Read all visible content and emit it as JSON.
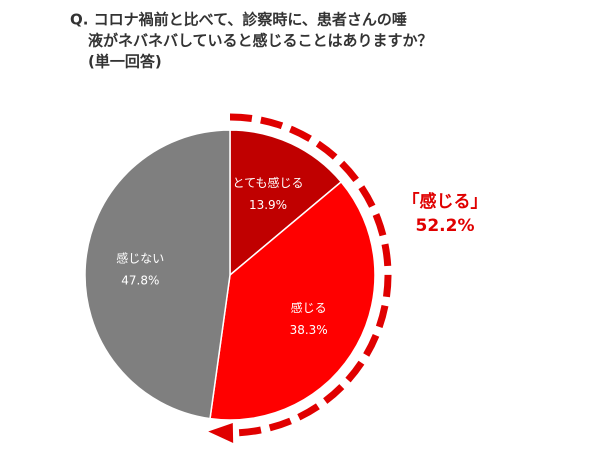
{
  "chart_data": {
    "type": "pie",
    "title_lines": [
      "Q. コロナ禍前と比べて、診察時に、患者さんの唾",
      "液がネバネバしていると感じることはありますか？",
      "(単一回答)"
    ],
    "categories": [
      "とても感じる",
      "感じる",
      "感じない"
    ],
    "values": [
      13.9,
      38.3,
      47.8
    ],
    "value_labels": [
      "13.9%",
      "38.3%",
      "47.8%"
    ],
    "colors": [
      "#c00000",
      "#ff0000",
      "#7f7f7f"
    ],
    "annotation": {
      "label": "「感じる」",
      "value": 52.2,
      "value_label": "52.2%",
      "color": "#e00000"
    }
  }
}
